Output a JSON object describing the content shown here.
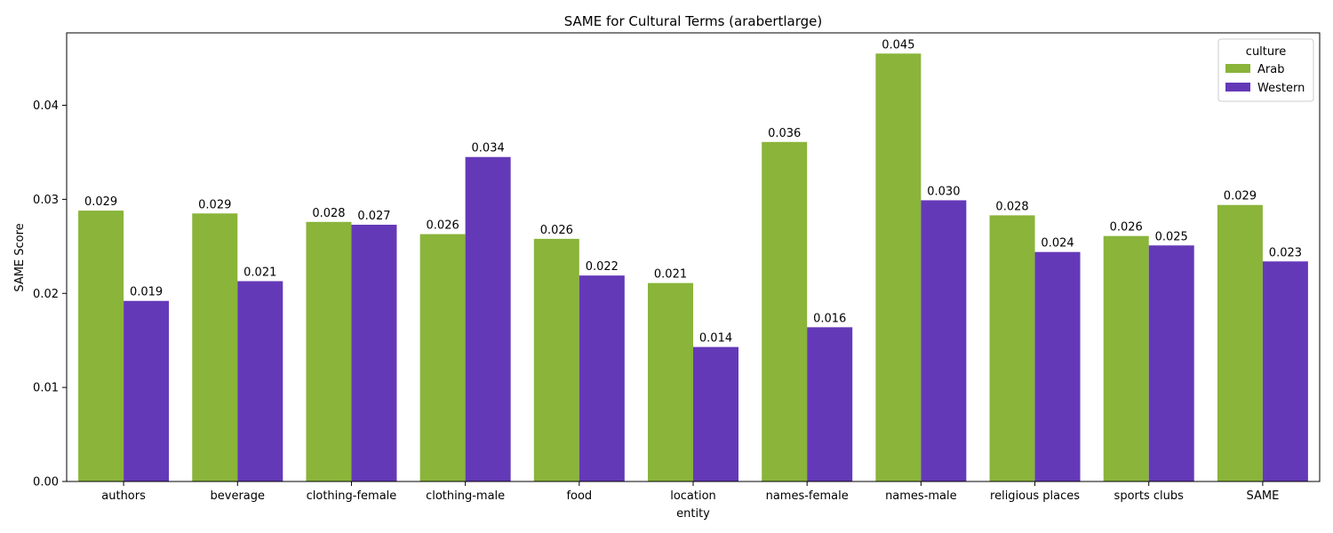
{
  "chart_data": {
    "type": "bar",
    "title": "SAME for Cultural Terms (arabertlarge)",
    "xlabel": "entity",
    "ylabel": "SAME Score",
    "ylim": [
      0,
      0.0477
    ],
    "yticks": [
      0.0,
      0.01,
      0.02,
      0.03,
      0.04
    ],
    "ytick_labels": [
      "0.00",
      "0.01",
      "0.02",
      "0.03",
      "0.04"
    ],
    "categories": [
      "authors",
      "beverage",
      "clothing-female",
      "clothing-male",
      "food",
      "location",
      "names-female",
      "names-male",
      "religious places",
      "sports clubs",
      "SAME"
    ],
    "series": [
      {
        "name": "Arab",
        "color": "#8ab43a",
        "values": [
          0.0288,
          0.0285,
          0.0276,
          0.0263,
          0.0258,
          0.0211,
          0.0361,
          0.0455,
          0.0283,
          0.0261,
          0.0294
        ],
        "labels": [
          "0.029",
          "0.029",
          "0.028",
          "0.026",
          "0.026",
          "0.021",
          "0.036",
          "0.045",
          "0.028",
          "0.026",
          "0.029"
        ]
      },
      {
        "name": "Western",
        "color": "#6439b8",
        "values": [
          0.0192,
          0.0213,
          0.0273,
          0.0345,
          0.0219,
          0.0143,
          0.0164,
          0.0299,
          0.0244,
          0.0251,
          0.0234
        ],
        "labels": [
          "0.019",
          "0.021",
          "0.027",
          "0.034",
          "0.022",
          "0.014",
          "0.016",
          "0.030",
          "0.024",
          "0.025",
          "0.023"
        ]
      }
    ],
    "legend": {
      "title": "culture",
      "placement": "top-right"
    },
    "grid": false
  }
}
